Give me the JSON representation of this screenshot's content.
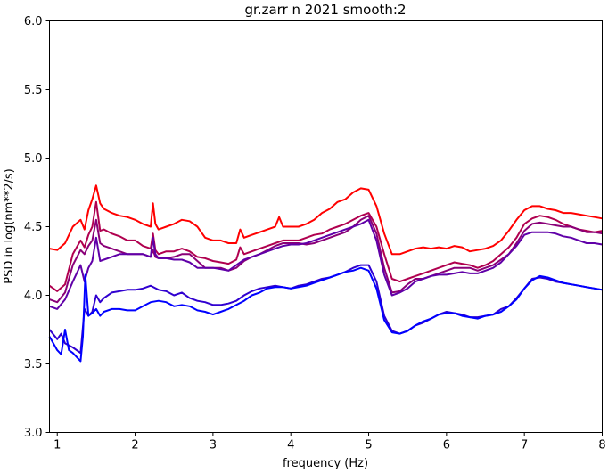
{
  "chart_data": {
    "type": "line",
    "title": "gr.zarr n 2021 smooth:2",
    "xlabel": "frequency (Hz)",
    "ylabel": "PSD in log(nm**2/s)",
    "xlim": [
      0.9,
      8.0
    ],
    "ylim": [
      3.0,
      6.0
    ],
    "xticks": [
      1,
      2,
      3,
      4,
      5,
      6,
      7,
      8
    ],
    "yticks": [
      3.0,
      3.5,
      4.0,
      4.5,
      5.0,
      5.5,
      6.0
    ],
    "grid": false,
    "series": [
      {
        "color": "#ff0000",
        "x": [
          0.9,
          1.0,
          1.1,
          1.2,
          1.3,
          1.35,
          1.4,
          1.45,
          1.5,
          1.55,
          1.6,
          1.7,
          1.8,
          1.9,
          2.0,
          2.1,
          2.2,
          2.23,
          2.26,
          2.3,
          2.4,
          2.5,
          2.6,
          2.7,
          2.8,
          2.9,
          3.0,
          3.1,
          3.2,
          3.3,
          3.35,
          3.4,
          3.5,
          3.6,
          3.7,
          3.8,
          3.85,
          3.9,
          4.0,
          4.1,
          4.2,
          4.3,
          4.4,
          4.5,
          4.6,
          4.7,
          4.8,
          4.9,
          5.0,
          5.1,
          5.2,
          5.3,
          5.4,
          5.5,
          5.6,
          5.7,
          5.8,
          5.9,
          6.0,
          6.1,
          6.2,
          6.3,
          6.4,
          6.5,
          6.6,
          6.7,
          6.8,
          6.9,
          7.0,
          7.1,
          7.2,
          7.3,
          7.4,
          7.5,
          7.6,
          7.7,
          7.8,
          7.9,
          8.0
        ],
        "y": [
          4.34,
          4.33,
          4.38,
          4.5,
          4.55,
          4.48,
          4.62,
          4.7,
          4.8,
          4.67,
          4.63,
          4.6,
          4.58,
          4.57,
          4.55,
          4.52,
          4.5,
          4.67,
          4.52,
          4.48,
          4.5,
          4.52,
          4.55,
          4.54,
          4.5,
          4.42,
          4.4,
          4.4,
          4.38,
          4.38,
          4.48,
          4.42,
          4.44,
          4.46,
          4.48,
          4.5,
          4.57,
          4.5,
          4.5,
          4.5,
          4.52,
          4.55,
          4.6,
          4.63,
          4.68,
          4.7,
          4.75,
          4.78,
          4.77,
          4.65,
          4.45,
          4.3,
          4.3,
          4.32,
          4.34,
          4.35,
          4.34,
          4.35,
          4.34,
          4.36,
          4.35,
          4.32,
          4.33,
          4.34,
          4.36,
          4.4,
          4.47,
          4.55,
          4.62,
          4.65,
          4.65,
          4.63,
          4.62,
          4.6,
          4.6,
          4.59,
          4.58,
          4.57,
          4.56
        ]
      },
      {
        "color": "#b0004f",
        "x": [
          0.9,
          1.0,
          1.1,
          1.2,
          1.3,
          1.35,
          1.4,
          1.45,
          1.5,
          1.55,
          1.6,
          1.7,
          1.8,
          1.9,
          2.0,
          2.1,
          2.2,
          2.23,
          2.26,
          2.3,
          2.4,
          2.5,
          2.6,
          2.7,
          2.8,
          2.9,
          3.0,
          3.1,
          3.2,
          3.3,
          3.35,
          3.4,
          3.5,
          3.6,
          3.7,
          3.8,
          3.9,
          4.0,
          4.1,
          4.2,
          4.3,
          4.4,
          4.5,
          4.6,
          4.7,
          4.8,
          4.9,
          5.0,
          5.1,
          5.2,
          5.3,
          5.4,
          5.5,
          5.6,
          5.7,
          5.8,
          5.9,
          6.0,
          6.1,
          6.2,
          6.3,
          6.4,
          6.5,
          6.6,
          6.7,
          6.8,
          6.9,
          7.0,
          7.1,
          7.2,
          7.3,
          7.4,
          7.5,
          7.6,
          7.7,
          7.8,
          7.9,
          8.0
        ],
        "y": [
          4.07,
          4.03,
          4.08,
          4.3,
          4.4,
          4.35,
          4.44,
          4.5,
          4.68,
          4.47,
          4.48,
          4.45,
          4.43,
          4.4,
          4.4,
          4.36,
          4.34,
          4.45,
          4.33,
          4.3,
          4.32,
          4.32,
          4.34,
          4.32,
          4.28,
          4.27,
          4.25,
          4.24,
          4.23,
          4.26,
          4.35,
          4.3,
          4.32,
          4.34,
          4.36,
          4.38,
          4.4,
          4.4,
          4.4,
          4.42,
          4.44,
          4.45,
          4.48,
          4.5,
          4.52,
          4.55,
          4.58,
          4.6,
          4.5,
          4.3,
          4.12,
          4.1,
          4.12,
          4.14,
          4.16,
          4.18,
          4.2,
          4.22,
          4.24,
          4.23,
          4.22,
          4.2,
          4.22,
          4.25,
          4.3,
          4.35,
          4.42,
          4.52,
          4.56,
          4.58,
          4.57,
          4.55,
          4.52,
          4.5,
          4.48,
          4.47,
          4.46,
          4.47
        ]
      },
      {
        "color": "#8a0078",
        "x": [
          0.9,
          1.0,
          1.1,
          1.2,
          1.3,
          1.35,
          1.4,
          1.45,
          1.5,
          1.55,
          1.6,
          1.7,
          1.8,
          1.9,
          2.0,
          2.1,
          2.2,
          2.23,
          2.26,
          2.3,
          2.4,
          2.5,
          2.6,
          2.7,
          2.8,
          2.9,
          3.0,
          3.1,
          3.2,
          3.3,
          3.4,
          3.5,
          3.6,
          3.7,
          3.8,
          3.9,
          4.0,
          4.1,
          4.2,
          4.3,
          4.4,
          4.5,
          4.6,
          4.7,
          4.8,
          4.9,
          5.0,
          5.1,
          5.2,
          5.3,
          5.4,
          5.5,
          5.6,
          5.7,
          5.8,
          5.9,
          6.0,
          6.1,
          6.2,
          6.3,
          6.4,
          6.5,
          6.6,
          6.7,
          6.8,
          6.9,
          7.0,
          7.1,
          7.2,
          7.3,
          7.4,
          7.5,
          7.6,
          7.7,
          7.8,
          7.9,
          8.0
        ],
        "y": [
          3.97,
          3.95,
          4.02,
          4.22,
          4.33,
          4.3,
          4.36,
          4.4,
          4.55,
          4.38,
          4.36,
          4.34,
          4.32,
          4.3,
          4.3,
          4.3,
          4.28,
          4.33,
          4.28,
          4.27,
          4.27,
          4.28,
          4.3,
          4.3,
          4.25,
          4.2,
          4.2,
          4.2,
          4.18,
          4.2,
          4.25,
          4.28,
          4.3,
          4.33,
          4.36,
          4.38,
          4.38,
          4.38,
          4.37,
          4.38,
          4.4,
          4.42,
          4.44,
          4.46,
          4.5,
          4.55,
          4.58,
          4.45,
          4.2,
          4.02,
          4.03,
          4.08,
          4.12,
          4.12,
          4.14,
          4.16,
          4.18,
          4.2,
          4.2,
          4.2,
          4.18,
          4.2,
          4.22,
          4.26,
          4.3,
          4.38,
          4.47,
          4.52,
          4.53,
          4.52,
          4.51,
          4.5,
          4.5,
          4.48,
          4.46,
          4.46,
          4.45
        ]
      },
      {
        "color": "#6000a8",
        "x": [
          0.9,
          1.0,
          1.1,
          1.2,
          1.3,
          1.35,
          1.4,
          1.45,
          1.5,
          1.55,
          1.6,
          1.7,
          1.8,
          1.9,
          2.0,
          2.1,
          2.2,
          2.23,
          2.26,
          2.3,
          2.4,
          2.5,
          2.6,
          2.7,
          2.8,
          2.9,
          3.0,
          3.1,
          3.2,
          3.3,
          3.4,
          3.5,
          3.6,
          3.7,
          3.8,
          3.9,
          4.0,
          4.1,
          4.2,
          4.3,
          4.4,
          4.5,
          4.6,
          4.7,
          4.8,
          4.9,
          5.0,
          5.1,
          5.2,
          5.3,
          5.4,
          5.5,
          5.6,
          5.7,
          5.8,
          5.9,
          6.0,
          6.1,
          6.2,
          6.3,
          6.4,
          6.5,
          6.6,
          6.7,
          6.8,
          6.9,
          7.0,
          7.1,
          7.2,
          7.3,
          7.4,
          7.5,
          7.6,
          7.7,
          7.8,
          7.9,
          8.0
        ],
        "y": [
          3.92,
          3.9,
          3.97,
          4.1,
          4.22,
          4.1,
          4.2,
          4.25,
          4.42,
          4.25,
          4.26,
          4.28,
          4.3,
          4.3,
          4.3,
          4.3,
          4.28,
          4.42,
          4.3,
          4.27,
          4.27,
          4.26,
          4.26,
          4.24,
          4.2,
          4.2,
          4.2,
          4.19,
          4.18,
          4.22,
          4.26,
          4.28,
          4.3,
          4.32,
          4.34,
          4.36,
          4.37,
          4.37,
          4.38,
          4.4,
          4.42,
          4.44,
          4.46,
          4.48,
          4.5,
          4.52,
          4.55,
          4.4,
          4.15,
          4.0,
          4.02,
          4.05,
          4.1,
          4.12,
          4.14,
          4.15,
          4.15,
          4.16,
          4.17,
          4.16,
          4.16,
          4.18,
          4.2,
          4.24,
          4.3,
          4.36,
          4.44,
          4.46,
          4.46,
          4.46,
          4.45,
          4.43,
          4.42,
          4.4,
          4.38,
          4.38,
          4.37
        ]
      },
      {
        "color": "#3000d0",
        "x": [
          0.9,
          1.0,
          1.05,
          1.1,
          1.2,
          1.3,
          1.35,
          1.4,
          1.45,
          1.5,
          1.55,
          1.6,
          1.7,
          1.8,
          1.9,
          2.0,
          2.1,
          2.2,
          2.3,
          2.4,
          2.5,
          2.6,
          2.7,
          2.8,
          2.9,
          3.0,
          3.1,
          3.2,
          3.3,
          3.4,
          3.5,
          3.6,
          3.7,
          3.8,
          3.9,
          4.0,
          4.1,
          4.2,
          4.3,
          4.4,
          4.5,
          4.6,
          4.7,
          4.8,
          4.9,
          5.0,
          5.1,
          5.2,
          5.3,
          5.4,
          5.5,
          5.6,
          5.7,
          5.8,
          5.9,
          6.0,
          6.1,
          6.2,
          6.3,
          6.4,
          6.5,
          6.6,
          6.7,
          6.8,
          6.9,
          7.0,
          7.1,
          7.2,
          7.3,
          7.4,
          7.5,
          7.6,
          7.7,
          7.8,
          7.9,
          8.0
        ],
        "y": [
          3.75,
          3.68,
          3.72,
          3.65,
          3.62,
          3.58,
          3.9,
          3.85,
          3.88,
          4.0,
          3.95,
          3.98,
          4.02,
          4.03,
          4.04,
          4.04,
          4.05,
          4.07,
          4.04,
          4.03,
          4.0,
          4.02,
          3.98,
          3.96,
          3.95,
          3.93,
          3.93,
          3.94,
          3.96,
          4.0,
          4.03,
          4.05,
          4.06,
          4.07,
          4.06,
          4.05,
          4.07,
          4.08,
          4.1,
          4.12,
          4.13,
          4.15,
          4.17,
          4.2,
          4.22,
          4.22,
          4.1,
          3.85,
          3.74,
          3.72,
          3.74,
          3.78,
          3.8,
          3.83,
          3.86,
          3.88,
          3.87,
          3.86,
          3.84,
          3.84,
          3.85,
          3.86,
          3.9,
          3.92,
          3.98,
          4.05,
          4.12,
          4.13,
          4.12,
          4.1,
          4.09,
          4.08,
          4.07,
          4.06,
          4.05,
          4.04
        ]
      },
      {
        "color": "#0000ff",
        "x": [
          0.9,
          1.0,
          1.05,
          1.1,
          1.15,
          1.2,
          1.3,
          1.33,
          1.36,
          1.4,
          1.45,
          1.5,
          1.55,
          1.6,
          1.7,
          1.8,
          1.9,
          2.0,
          2.1,
          2.2,
          2.3,
          2.4,
          2.5,
          2.6,
          2.7,
          2.8,
          2.9,
          3.0,
          3.1,
          3.2,
          3.3,
          3.4,
          3.5,
          3.6,
          3.7,
          3.8,
          3.9,
          4.0,
          4.1,
          4.2,
          4.3,
          4.4,
          4.5,
          4.6,
          4.7,
          4.8,
          4.9,
          5.0,
          5.1,
          5.2,
          5.3,
          5.4,
          5.5,
          5.6,
          5.7,
          5.8,
          5.9,
          6.0,
          6.1,
          6.2,
          6.3,
          6.4,
          6.5,
          6.6,
          6.7,
          6.8,
          6.9,
          7.0,
          7.1,
          7.2,
          7.3,
          7.4,
          7.5,
          7.6,
          7.7,
          7.8,
          7.9,
          8.0
        ],
        "y": [
          3.7,
          3.6,
          3.57,
          3.75,
          3.6,
          3.58,
          3.52,
          3.7,
          4.15,
          3.85,
          3.87,
          3.9,
          3.85,
          3.88,
          3.9,
          3.9,
          3.89,
          3.89,
          3.92,
          3.95,
          3.96,
          3.95,
          3.92,
          3.93,
          3.92,
          3.89,
          3.88,
          3.86,
          3.88,
          3.9,
          3.93,
          3.96,
          4.0,
          4.02,
          4.05,
          4.06,
          4.06,
          4.05,
          4.06,
          4.07,
          4.09,
          4.11,
          4.13,
          4.15,
          4.17,
          4.18,
          4.2,
          4.18,
          4.05,
          3.82,
          3.73,
          3.72,
          3.74,
          3.78,
          3.81,
          3.83,
          3.86,
          3.87,
          3.87,
          3.85,
          3.84,
          3.83,
          3.85,
          3.86,
          3.88,
          3.92,
          3.97,
          4.05,
          4.11,
          4.14,
          4.13,
          4.11,
          4.09,
          4.08,
          4.07,
          4.06,
          4.05,
          4.04
        ]
      }
    ]
  }
}
